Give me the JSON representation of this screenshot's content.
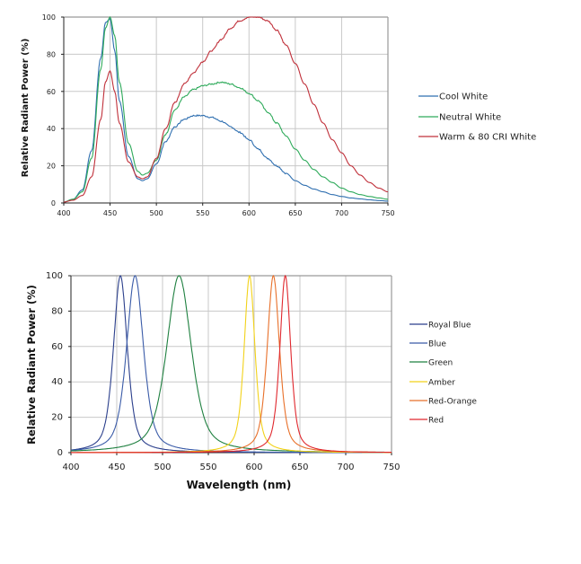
{
  "chart_data": [
    {
      "type": "line",
      "title": "",
      "xlabel": "",
      "ylabel": "Relative Radiant Power (%)",
      "xlim": [
        400,
        750
      ],
      "ylim": [
        0,
        100
      ],
      "xticks": [
        "400",
        "450",
        "500",
        "550",
        "600",
        "650",
        "700",
        "750"
      ],
      "yticks": [
        "0",
        "20",
        "40",
        "60",
        "80",
        "100"
      ],
      "grid": true,
      "legend_position": "right",
      "x": [
        400,
        410,
        420,
        430,
        440,
        445,
        450,
        455,
        460,
        470,
        480,
        485,
        490,
        500,
        510,
        520,
        530,
        540,
        550,
        560,
        570,
        580,
        590,
        600,
        610,
        620,
        630,
        640,
        650,
        660,
        670,
        680,
        690,
        700,
        710,
        720,
        730,
        740,
        750
      ],
      "series": [
        {
          "name": "Cool White",
          "color": "#2f6fb0",
          "values": [
            0.5,
            2,
            7,
            28,
            78,
            97,
            99,
            82,
            55,
            25,
            13,
            12,
            13,
            21,
            33,
            41,
            45,
            47,
            47,
            46,
            44,
            41,
            38,
            34,
            29,
            24,
            20,
            16,
            12,
            9.5,
            7.5,
            6,
            4.5,
            3.5,
            2.7,
            2.2,
            1.7,
            1.3,
            1.0
          ]
        },
        {
          "name": "Neutral White",
          "color": "#2eaa5a",
          "values": [
            0.5,
            2,
            6,
            24,
            72,
            94,
            100,
            90,
            65,
            32,
            17,
            15,
            16,
            23,
            37,
            50,
            57,
            61,
            63,
            64,
            65,
            64,
            62,
            59,
            55,
            49,
            43,
            36,
            29,
            23,
            18,
            14,
            11,
            8,
            6,
            4.5,
            3.5,
            2.7,
            2.0
          ]
        },
        {
          "name": "Warm & 80 CRI White",
          "color": "#c0303a",
          "values": [
            0.5,
            1.5,
            4,
            14,
            45,
            65,
            71,
            60,
            43,
            22,
            14,
            13,
            14,
            24,
            40,
            54,
            64,
            70,
            76,
            82,
            88,
            94,
            98,
            100,
            100,
            98,
            93,
            85,
            75,
            64,
            53,
            43,
            34,
            27,
            20,
            15,
            11,
            8,
            6
          ]
        }
      ]
    },
    {
      "type": "line",
      "title": "",
      "xlabel": "Wavelength (nm)",
      "ylabel": "Relative Radiant Power (%)",
      "xlim": [
        400,
        750
      ],
      "ylim": [
        0,
        100
      ],
      "xticks": [
        "400",
        "450",
        "500",
        "550",
        "600",
        "650",
        "700",
        "750"
      ],
      "yticks": [
        "0",
        "20",
        "40",
        "60",
        "80",
        "100"
      ],
      "grid": true,
      "legend_position": "right",
      "series": [
        {
          "name": "Royal Blue",
          "color": "#2b3f8c",
          "peak_nm": 454,
          "fwhm_nm": 18,
          "peak_value": 100
        },
        {
          "name": "Blue",
          "color": "#3a5ba8",
          "peak_nm": 470,
          "fwhm_nm": 22,
          "peak_value": 100
        },
        {
          "name": "Green",
          "color": "#1f8040",
          "peak_nm": 518,
          "fwhm_nm": 32,
          "peak_value": 100
        },
        {
          "name": "Amber",
          "color": "#f2d21a",
          "peak_nm": 595,
          "fwhm_nm": 14,
          "peak_value": 100
        },
        {
          "name": "Red-Orange",
          "color": "#e8702a",
          "peak_nm": 621,
          "fwhm_nm": 16,
          "peak_value": 100
        },
        {
          "name": "Red",
          "color": "#e0282e",
          "peak_nm": 634,
          "fwhm_nm": 14,
          "peak_value": 100
        }
      ]
    }
  ]
}
